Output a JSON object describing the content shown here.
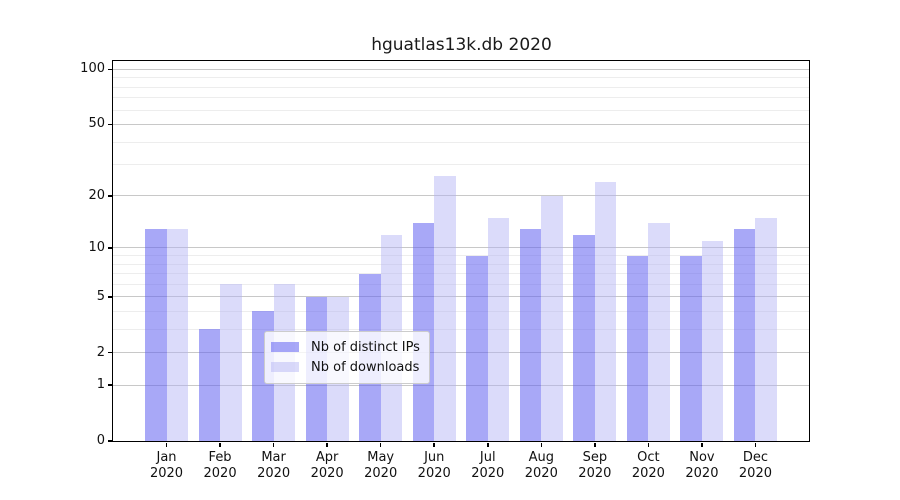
{
  "chart_data": {
    "type": "bar",
    "title": "hguatlas13k.db 2020",
    "categories": [
      "Jan",
      "Feb",
      "Mar",
      "Apr",
      "May",
      "Jun",
      "Jul",
      "Aug",
      "Sep",
      "Oct",
      "Nov",
      "Dec"
    ],
    "category_second_line": "2020",
    "series": [
      {
        "name": "Nb of distinct IPs",
        "color": "rgba(96,96,240,0.55)",
        "values": [
          13,
          3,
          4,
          5,
          7,
          14,
          9,
          13,
          12,
          9,
          9,
          13
        ]
      },
      {
        "name": "Nb of downloads",
        "color": "rgba(176,176,243,0.45)",
        "values": [
          13,
          6,
          6,
          5,
          12,
          26,
          15,
          20,
          24,
          14,
          11,
          15
        ]
      }
    ],
    "y_axis": {
      "scale": "symlog-log1p",
      "tick_labels": [
        0,
        1,
        2,
        5,
        10,
        20,
        50,
        100
      ],
      "major_gridlines": [
        1,
        2,
        5,
        10,
        20,
        50,
        100
      ],
      "minor_gridlines": [
        3,
        4,
        6,
        7,
        8,
        9,
        30,
        40,
        60,
        70,
        80,
        90
      ],
      "ymax_visible": 115
    },
    "legend": {
      "position": "lower center"
    },
    "colors": {
      "major_grid": "#c8c8c8",
      "minor_grid": "#ededed",
      "spine": "#000000",
      "text": "#111111"
    }
  }
}
